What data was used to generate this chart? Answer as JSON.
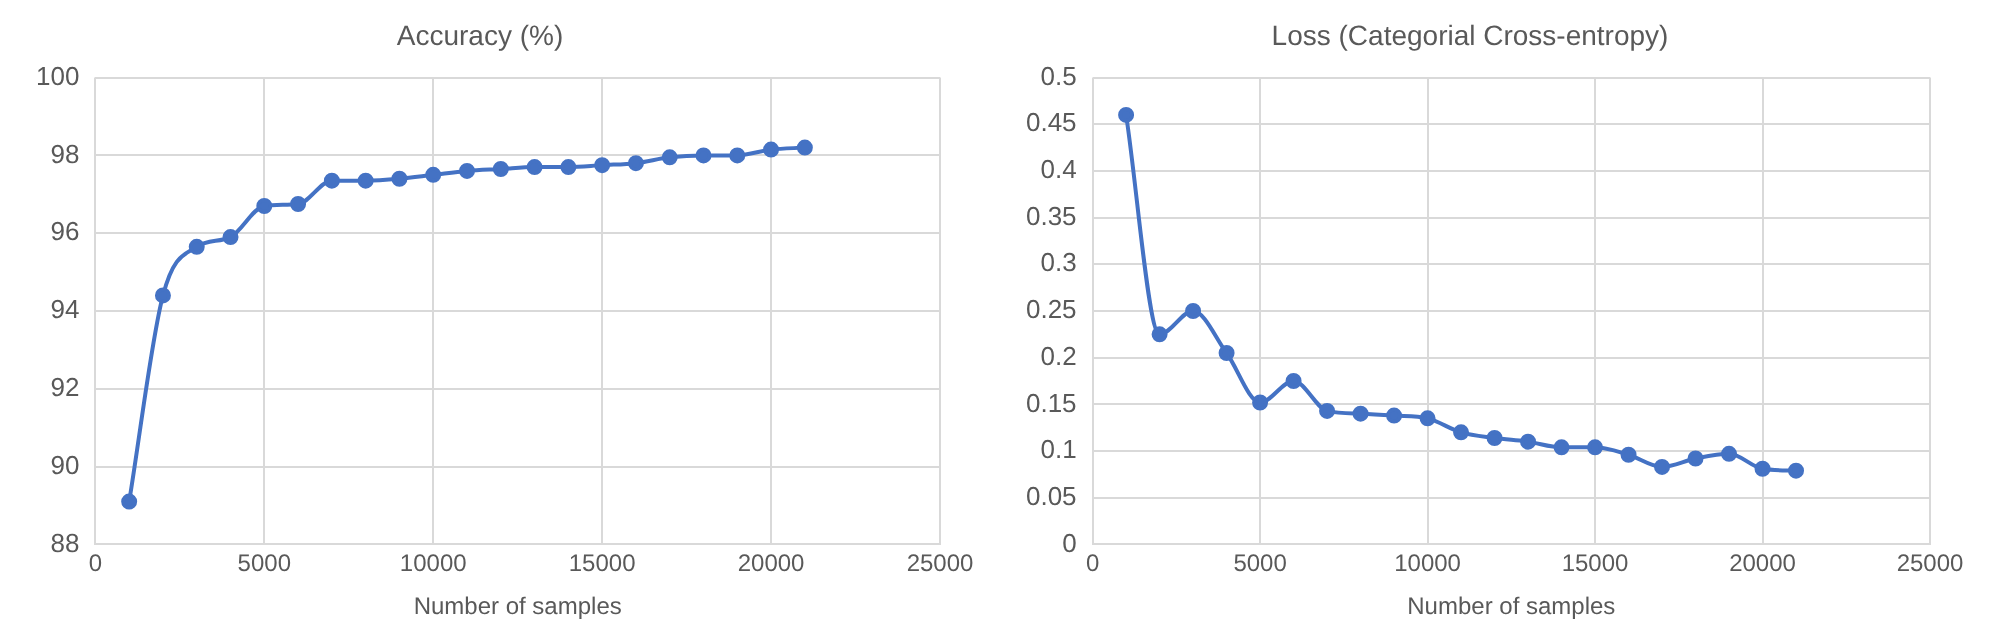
{
  "chart_data": [
    {
      "type": "line",
      "title": "Accuracy (%)",
      "xlabel": "Number of samples",
      "x": [
        1000,
        2000,
        3000,
        4000,
        5000,
        6000,
        7000,
        8000,
        9000,
        10000,
        11000,
        12000,
        13000,
        14000,
        15000,
        16000,
        17000,
        18000,
        19000,
        20000,
        21000
      ],
      "series": [
        {
          "color": "#4472c4",
          "values": [
            89.1,
            94.4,
            95.65,
            95.9,
            96.7,
            96.75,
            97.35,
            97.35,
            97.4,
            97.5,
            97.6,
            97.65,
            97.7,
            97.7,
            97.75,
            97.8,
            97.95,
            98.0,
            98.0,
            98.15,
            98.2
          ]
        }
      ],
      "xlim": [
        0,
        25000
      ],
      "xticks": [
        0,
        5000,
        10000,
        15000,
        20000,
        25000
      ],
      "ylim": [
        88,
        100
      ],
      "yticks": [
        88,
        90,
        92,
        94,
        96,
        98,
        100
      ],
      "grid": true,
      "legend": false,
      "marker": "circle",
      "line_style": "solid"
    },
    {
      "type": "line",
      "title": "Loss (Categorial Cross-entropy)",
      "xlabel": "Number of samples",
      "x": [
        1000,
        2000,
        3000,
        4000,
        5000,
        6000,
        7000,
        8000,
        9000,
        10000,
        11000,
        12000,
        13000,
        14000,
        15000,
        16000,
        17000,
        18000,
        19000,
        20000,
        21000
      ],
      "series": [
        {
          "color": "#4472c4",
          "values": [
            0.46,
            0.225,
            0.25,
            0.205,
            0.152,
            0.175,
            0.143,
            0.14,
            0.138,
            0.135,
            0.12,
            0.114,
            0.11,
            0.104,
            0.104,
            0.096,
            0.083,
            0.092,
            0.097,
            0.081,
            0.079
          ]
        }
      ],
      "xlim": [
        0,
        25000
      ],
      "xticks": [
        0,
        5000,
        10000,
        15000,
        20000,
        25000
      ],
      "ylim": [
        0,
        0.5
      ],
      "yticks": [
        0,
        0.05,
        0.1,
        0.15,
        0.2,
        0.25,
        0.3,
        0.35,
        0.4,
        0.45,
        0.5
      ],
      "grid": true,
      "legend": false,
      "marker": "circle",
      "line_style": "solid"
    }
  ]
}
